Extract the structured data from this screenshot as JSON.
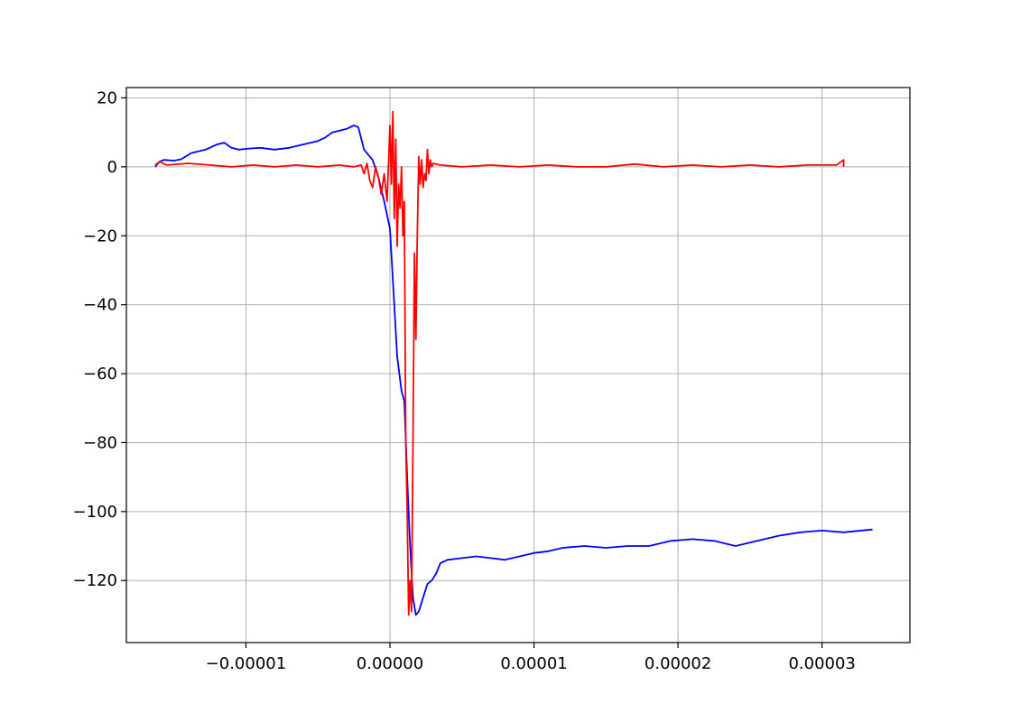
{
  "chart_data": {
    "type": "line",
    "title": "",
    "xlabel": "",
    "ylabel": "",
    "xlim": [
      -1.83e-05,
      3.61e-05
    ],
    "ylim": [
      -138,
      23
    ],
    "grid": true,
    "x_ticks": [
      -1e-05,
      0.0,
      1e-05,
      2e-05,
      3e-05
    ],
    "x_tick_labels": [
      "−0.00001",
      "0.00000",
      "0.00001",
      "0.00002",
      "0.00003"
    ],
    "y_ticks": [
      20,
      0,
      -20,
      -40,
      -60,
      -80,
      -100,
      -120
    ],
    "y_tick_labels": [
      "20",
      "0",
      "−20",
      "−40",
      "−60",
      "−80",
      "−100",
      "−120"
    ],
    "series": [
      {
        "color": "#0000ff",
        "x": [
          -1.63e-05,
          -1.6e-05,
          -1.57e-05,
          -1.5e-05,
          -1.45e-05,
          -1.38e-05,
          -1.28e-05,
          -1.2e-05,
          -1.15e-05,
          -1.1e-05,
          -1.05e-05,
          -9.8e-06,
          -9e-06,
          -8e-06,
          -7e-06,
          -6e-06,
          -5e-06,
          -4.5e-06,
          -4e-06,
          -3.5e-06,
          -3e-06,
          -2.5e-06,
          -2.2e-06,
          -1.8e-06,
          -1.2e-06,
          -8e-07,
          -4e-07,
          0.0,
          3e-07,
          5e-07,
          8e-07,
          1e-06,
          1.2e-06,
          1.4e-06,
          1.6e-06,
          1.8e-06,
          2e-06,
          2.3e-06,
          2.6e-06,
          2.9e-06,
          3.2e-06,
          3.5e-06,
          4e-06,
          5e-06,
          6e-06,
          7e-06,
          8e-06,
          9e-06,
          1e-05,
          1.1e-05,
          1.2e-05,
          1.35e-05,
          1.5e-05,
          1.65e-05,
          1.8e-05,
          1.95e-05,
          2.1e-05,
          2.25e-05,
          2.4e-05,
          2.55e-05,
          2.7e-05,
          2.85e-05,
          3e-05,
          3.15e-05,
          3.35e-05
        ],
        "y": [
          0,
          1.5,
          2,
          1.8,
          2.2,
          4,
          5,
          6.5,
          7,
          5.5,
          5,
          5.3,
          5.5,
          5,
          5.5,
          6.5,
          7.5,
          8.5,
          10,
          10.5,
          11,
          12,
          11.5,
          5,
          2,
          -3,
          -10,
          -18,
          -40,
          -55,
          -65,
          -68,
          -90,
          -110,
          -125,
          -130,
          -129,
          -125,
          -121,
          -120,
          -118,
          -115,
          -114,
          -113.5,
          -113,
          -113.5,
          -114,
          -113,
          -112,
          -111.5,
          -110.5,
          -110,
          -110.5,
          -110,
          -110,
          -108.5,
          -108,
          -108.5,
          -110,
          -108.5,
          -107,
          -106,
          -105.5,
          -106,
          -105.2
        ]
      },
      {
        "color": "#ff0000",
        "x": [
          -1.63e-05,
          -1.6e-05,
          -1.55e-05,
          -1.4e-05,
          -1.25e-05,
          -1.1e-05,
          -9.5e-06,
          -8e-06,
          -6.5e-06,
          -5e-06,
          -3.5e-06,
          -2.5e-06,
          -2e-06,
          -1.8e-06,
          -1.6e-06,
          -1.4e-06,
          -1.2e-06,
          -1e-06,
          -8e-07,
          -6e-07,
          -4e-07,
          -2e-07,
          0.0,
          1e-07,
          2e-07,
          3e-07,
          4e-07,
          5e-07,
          6e-07,
          7e-07,
          8e-07,
          9e-07,
          1e-06,
          1.1e-06,
          1.2e-06,
          1.3e-06,
          1.4e-06,
          1.5e-06,
          1.6e-06,
          1.7e-06,
          1.8e-06,
          1.9e-06,
          2e-06,
          2.1e-06,
          2.2e-06,
          2.3e-06,
          2.4e-06,
          2.5e-06,
          2.6e-06,
          2.7e-06,
          2.8e-06,
          2.9e-06,
          3e-06,
          3.5e-06,
          5e-06,
          7e-06,
          9e-06,
          1.1e-05,
          1.3e-05,
          1.5e-05,
          1.7e-05,
          1.9e-05,
          2.1e-05,
          2.3e-05,
          2.5e-05,
          2.7e-05,
          2.9e-05,
          3.1e-05,
          3.15e-05,
          3.15e-05
        ],
        "y": [
          0.5,
          1.5,
          0.5,
          1,
          0.5,
          0,
          0.5,
          0,
          0.5,
          0,
          0.5,
          0,
          0.5,
          -2,
          1,
          -4,
          -6,
          0,
          -3,
          -8,
          -2,
          -10,
          12,
          -5,
          16,
          -15,
          8,
          -23,
          -5,
          -12,
          0,
          -20,
          -10,
          -80,
          -100,
          -130,
          -120,
          -129,
          -80,
          -25,
          -50,
          -20,
          3,
          -5,
          2,
          -6,
          -2,
          -4,
          5,
          -2,
          2,
          0,
          1,
          0.5,
          0,
          0.5,
          0,
          0.5,
          0,
          0,
          0.8,
          0,
          0.5,
          0,
          0.5,
          0,
          0.5,
          0.5,
          2,
          0
        ]
      }
    ]
  }
}
